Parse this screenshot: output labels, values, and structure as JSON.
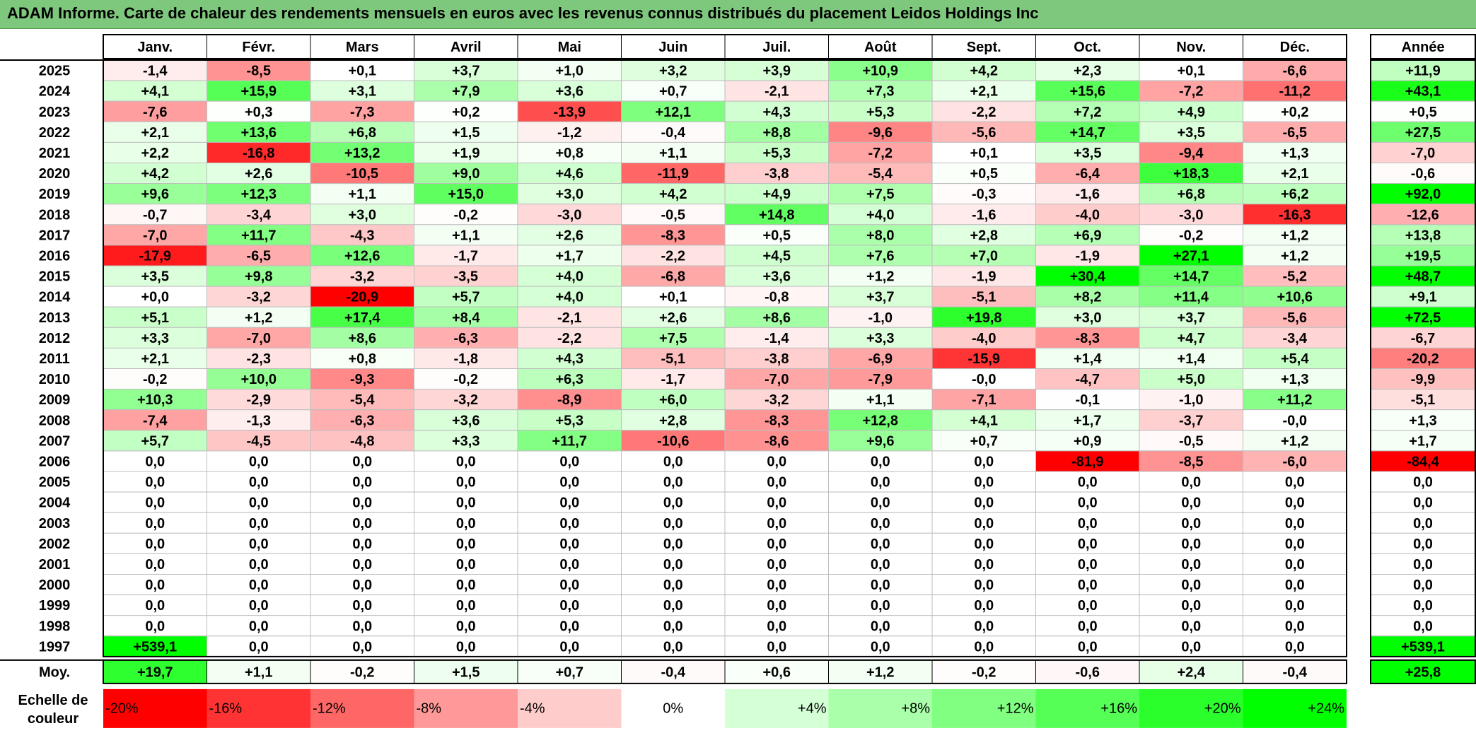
{
  "title": "ADAM Informe. Carte de chaleur des rendements mensuels en euros avec les revenus connus distribués du placement Leidos Holdings Inc",
  "chart_data": {
    "type": "heatmap",
    "title": "ADAM Informe. Carte de chaleur des rendements mensuels en euros avec les revenus connus distribués du placement Leidos Holdings Inc",
    "columns": [
      "Janv.",
      "Févr.",
      "Mars",
      "Avril",
      "Mai",
      "Juin",
      "Juil.",
      "Août",
      "Sept.",
      "Oct.",
      "Nov.",
      "Déc."
    ],
    "year_header": "Année",
    "rows": [
      {
        "year": "2025",
        "values": [
          "-1,4",
          "-8,5",
          "+0,1",
          "+3,7",
          "+1,0",
          "+3,2",
          "+3,9",
          "+10,9",
          "+4,2",
          "+2,3",
          "+0,1",
          "-6,6"
        ],
        "annual": "+11,9"
      },
      {
        "year": "2024",
        "values": [
          "+4,1",
          "+15,9",
          "+3,1",
          "+7,9",
          "+3,6",
          "+0,7",
          "-2,1",
          "+7,3",
          "+2,1",
          "+15,6",
          "-7,2",
          "-11,2"
        ],
        "annual": "+43,1"
      },
      {
        "year": "2023",
        "values": [
          "-7,6",
          "+0,3",
          "-7,3",
          "+0,2",
          "-13,9",
          "+12,1",
          "+4,3",
          "+5,3",
          "-2,2",
          "+7,2",
          "+4,9",
          "+0,2"
        ],
        "annual": "+0,5"
      },
      {
        "year": "2022",
        "values": [
          "+2,1",
          "+13,6",
          "+6,8",
          "+1,5",
          "-1,2",
          "-0,4",
          "+8,8",
          "-9,6",
          "-5,6",
          "+14,7",
          "+3,5",
          "-6,5"
        ],
        "annual": "+27,5"
      },
      {
        "year": "2021",
        "values": [
          "+2,2",
          "-16,8",
          "+13,2",
          "+1,9",
          "+0,8",
          "+1,1",
          "+5,3",
          "-7,2",
          "+0,1",
          "+3,5",
          "-9,4",
          "+1,3"
        ],
        "annual": "-7,0"
      },
      {
        "year": "2020",
        "values": [
          "+4,2",
          "+2,6",
          "-10,5",
          "+9,0",
          "+4,6",
          "-11,9",
          "-3,8",
          "-5,4",
          "+0,5",
          "-6,4",
          "+18,3",
          "+2,1"
        ],
        "annual": "-0,6"
      },
      {
        "year": "2019",
        "values": [
          "+9,6",
          "+12,3",
          "+1,1",
          "+15,0",
          "+3,0",
          "+4,2",
          "+4,9",
          "+7,5",
          "-0,3",
          "-1,6",
          "+6,8",
          "+6,2"
        ],
        "annual": "+92,0"
      },
      {
        "year": "2018",
        "values": [
          "-0,7",
          "-3,4",
          "+3,0",
          "-0,2",
          "-3,0",
          "-0,5",
          "+14,8",
          "+4,0",
          "-1,6",
          "-4,0",
          "-3,0",
          "-16,3"
        ],
        "annual": "-12,6"
      },
      {
        "year": "2017",
        "values": [
          "-7,0",
          "+11,7",
          "-4,3",
          "+1,1",
          "+2,6",
          "-8,3",
          "+0,5",
          "+8,0",
          "+2,8",
          "+6,9",
          "-0,2",
          "+1,2"
        ],
        "annual": "+13,8"
      },
      {
        "year": "2016",
        "values": [
          "-17,9",
          "-6,5",
          "+12,6",
          "-1,7",
          "+1,7",
          "-2,2",
          "+4,5",
          "+7,6",
          "+7,0",
          "-1,9",
          "+27,1",
          "+1,2"
        ],
        "annual": "+19,5"
      },
      {
        "year": "2015",
        "values": [
          "+3,5",
          "+9,8",
          "-3,2",
          "-3,5",
          "+4,0",
          "-6,8",
          "+3,6",
          "+1,2",
          "-1,9",
          "+30,4",
          "+14,7",
          "-5,2"
        ],
        "annual": "+48,7"
      },
      {
        "year": "2014",
        "values": [
          "+0,0",
          "-3,2",
          "-20,9",
          "+5,7",
          "+4,0",
          "+0,1",
          "-0,8",
          "+3,7",
          "-5,1",
          "+8,2",
          "+11,4",
          "+10,6"
        ],
        "annual": "+9,1"
      },
      {
        "year": "2013",
        "values": [
          "+5,1",
          "+1,2",
          "+17,4",
          "+8,4",
          "-2,1",
          "+2,6",
          "+8,6",
          "-1,0",
          "+19,8",
          "+3,0",
          "+3,7",
          "-5,6"
        ],
        "annual": "+72,5"
      },
      {
        "year": "2012",
        "values": [
          "+3,3",
          "-7,0",
          "+8,6",
          "-6,3",
          "-2,2",
          "+7,5",
          "-1,4",
          "+3,3",
          "-4,0",
          "-8,3",
          "+4,7",
          "-3,4"
        ],
        "annual": "-6,7"
      },
      {
        "year": "2011",
        "values": [
          "+2,1",
          "-2,3",
          "+0,8",
          "-1,8",
          "+4,3",
          "-5,1",
          "-3,8",
          "-6,9",
          "-15,9",
          "+1,4",
          "+1,4",
          "+5,4"
        ],
        "annual": "-20,2"
      },
      {
        "year": "2010",
        "values": [
          "-0,2",
          "+10,0",
          "-9,3",
          "-0,2",
          "+6,3",
          "-1,7",
          "-7,0",
          "-7,9",
          "-0,0",
          "-4,7",
          "+5,0",
          "+1,3"
        ],
        "annual": "-9,9"
      },
      {
        "year": "2009",
        "values": [
          "+10,3",
          "-2,9",
          "-5,4",
          "-3,2",
          "-8,9",
          "+6,0",
          "-3,2",
          "+1,1",
          "-7,1",
          "-0,1",
          "-1,0",
          "+11,2"
        ],
        "annual": "-5,1"
      },
      {
        "year": "2008",
        "values": [
          "-7,4",
          "-1,3",
          "-6,3",
          "+3,6",
          "+5,3",
          "+2,8",
          "-8,3",
          "+12,8",
          "+4,1",
          "+1,7",
          "-3,7",
          "-0,0"
        ],
        "annual": "+1,3"
      },
      {
        "year": "2007",
        "values": [
          "+5,7",
          "-4,5",
          "-4,8",
          "+3,3",
          "+11,7",
          "-10,6",
          "-8,6",
          "+9,6",
          "+0,7",
          "+0,9",
          "-0,5",
          "+1,2"
        ],
        "annual": "+1,7"
      },
      {
        "year": "2006",
        "values": [
          "0,0",
          "0,0",
          "0,0",
          "0,0",
          "0,0",
          "0,0",
          "0,0",
          "0,0",
          "0,0",
          "-81,9",
          "-8,5",
          "-6,0"
        ],
        "annual": "-84,4"
      },
      {
        "year": "2005",
        "values": [
          "0,0",
          "0,0",
          "0,0",
          "0,0",
          "0,0",
          "0,0",
          "0,0",
          "0,0",
          "0,0",
          "0,0",
          "0,0",
          "0,0"
        ],
        "annual": "0,0"
      },
      {
        "year": "2004",
        "values": [
          "0,0",
          "0,0",
          "0,0",
          "0,0",
          "0,0",
          "0,0",
          "0,0",
          "0,0",
          "0,0",
          "0,0",
          "0,0",
          "0,0"
        ],
        "annual": "0,0"
      },
      {
        "year": "2003",
        "values": [
          "0,0",
          "0,0",
          "0,0",
          "0,0",
          "0,0",
          "0,0",
          "0,0",
          "0,0",
          "0,0",
          "0,0",
          "0,0",
          "0,0"
        ],
        "annual": "0,0"
      },
      {
        "year": "2002",
        "values": [
          "0,0",
          "0,0",
          "0,0",
          "0,0",
          "0,0",
          "0,0",
          "0,0",
          "0,0",
          "0,0",
          "0,0",
          "0,0",
          "0,0"
        ],
        "annual": "0,0"
      },
      {
        "year": "2001",
        "values": [
          "0,0",
          "0,0",
          "0,0",
          "0,0",
          "0,0",
          "0,0",
          "0,0",
          "0,0",
          "0,0",
          "0,0",
          "0,0",
          "0,0"
        ],
        "annual": "0,0"
      },
      {
        "year": "2000",
        "values": [
          "0,0",
          "0,0",
          "0,0",
          "0,0",
          "0,0",
          "0,0",
          "0,0",
          "0,0",
          "0,0",
          "0,0",
          "0,0",
          "0,0"
        ],
        "annual": "0,0"
      },
      {
        "year": "1999",
        "values": [
          "0,0",
          "0,0",
          "0,0",
          "0,0",
          "0,0",
          "0,0",
          "0,0",
          "0,0",
          "0,0",
          "0,0",
          "0,0",
          "0,0"
        ],
        "annual": "0,0"
      },
      {
        "year": "1998",
        "values": [
          "0,0",
          "0,0",
          "0,0",
          "0,0",
          "0,0",
          "0,0",
          "0,0",
          "0,0",
          "0,0",
          "0,0",
          "0,0",
          "0,0"
        ],
        "annual": "0,0"
      },
      {
        "year": "1997",
        "values": [
          "+539,1",
          "0,0",
          "0,0",
          "0,0",
          "0,0",
          "0,0",
          "0,0",
          "0,0",
          "0,0",
          "0,0",
          "0,0",
          "0,0"
        ],
        "annual": "+539,1"
      }
    ],
    "average": {
      "label": "Moy.",
      "values": [
        "+19,7",
        "+1,1",
        "-0,2",
        "+1,5",
        "+0,7",
        "-0,4",
        "+0,6",
        "+1,2",
        "-0,2",
        "-0,6",
        "+2,4",
        "-0,4"
      ],
      "annual": "+25,8"
    },
    "legend": {
      "label": "Echelle de couleur",
      "steps": [
        {
          "label": "-20%",
          "value": -20
        },
        {
          "label": "-16%",
          "value": -16
        },
        {
          "label": "-12%",
          "value": -12
        },
        {
          "label": "-8%",
          "value": -8
        },
        {
          "label": "-4%",
          "value": -4
        },
        {
          "label": "0%",
          "value": 0
        },
        {
          "label": "+4%",
          "value": 4
        },
        {
          "label": "+8%",
          "value": 8
        },
        {
          "label": "+12%",
          "value": 12
        },
        {
          "label": "+16%",
          "value": 16
        },
        {
          "label": "+20%",
          "value": 20
        },
        {
          "label": "+24%",
          "value": 24
        }
      ]
    },
    "colors": {
      "negative_max": "#ff0000",
      "neutral": "#ffffff",
      "positive_max": "#00ff00",
      "title_bar": "#7ec87e"
    }
  }
}
